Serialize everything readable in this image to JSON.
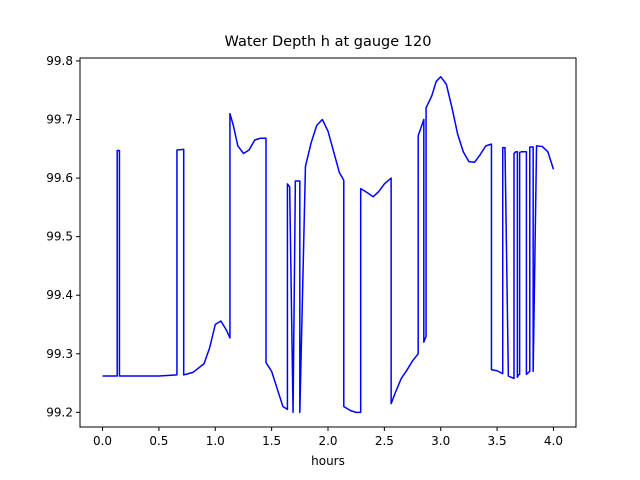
{
  "chart_data": {
    "type": "line",
    "title": "Water Depth h at gauge 120",
    "xlabel": "hours",
    "ylabel": "",
    "xlim": [
      -0.2,
      4.2
    ],
    "ylim": [
      99.175,
      99.805
    ],
    "grid": false,
    "legend": "none",
    "x_ticks": [
      0.0,
      0.5,
      1.0,
      1.5,
      2.0,
      2.5,
      3.0,
      3.5,
      4.0
    ],
    "x_tick_labels": [
      "0.0",
      "0.5",
      "1.0",
      "1.5",
      "2.0",
      "2.5",
      "3.0",
      "3.5",
      "4.0"
    ],
    "y_ticks": [
      99.2,
      99.3,
      99.4,
      99.5,
      99.6,
      99.7,
      99.8
    ],
    "y_tick_labels": [
      "99.2",
      "99.3",
      "99.4",
      "99.5",
      "99.6",
      "99.7",
      "99.8"
    ],
    "series": [
      {
        "color": "#0000ff",
        "x": [
          0.0,
          0.13,
          0.13,
          0.15,
          0.15,
          0.3,
          0.5,
          0.66,
          0.66,
          0.72,
          0.72,
          0.8,
          0.9,
          0.95,
          1.0,
          1.05,
          1.1,
          1.13,
          1.13,
          1.16,
          1.2,
          1.25,
          1.3,
          1.35,
          1.4,
          1.45,
          1.45,
          1.5,
          1.55,
          1.6,
          1.64,
          1.64,
          1.66,
          1.69,
          1.69,
          1.71,
          1.71,
          1.75,
          1.75,
          1.8,
          1.85,
          1.9,
          1.95,
          2.0,
          2.05,
          2.1,
          2.14,
          2.14,
          2.2,
          2.25,
          2.29,
          2.29,
          2.35,
          2.4,
          2.45,
          2.5,
          2.56,
          2.56,
          2.6,
          2.65,
          2.7,
          2.75,
          2.8,
          2.8,
          2.85,
          2.85,
          2.87,
          2.87,
          2.92,
          2.96,
          3.0,
          3.05,
          3.1,
          3.15,
          3.2,
          3.25,
          3.3,
          3.35,
          3.4,
          3.45,
          3.45,
          3.5,
          3.55,
          3.55,
          3.57,
          3.6,
          3.65,
          3.65,
          3.66,
          3.67,
          3.68,
          3.68,
          3.69,
          3.7,
          3.7,
          3.72,
          3.76,
          3.76,
          3.79,
          3.79,
          3.82,
          3.82,
          3.85,
          3.9,
          3.95,
          4.0
        ],
        "y": [
          99.262,
          99.262,
          99.647,
          99.647,
          99.262,
          99.262,
          99.262,
          99.264,
          99.648,
          99.649,
          99.264,
          99.268,
          99.283,
          99.31,
          99.35,
          99.356,
          99.34,
          99.327,
          99.71,
          99.69,
          99.655,
          99.642,
          99.648,
          99.665,
          99.668,
          99.668,
          99.285,
          99.27,
          99.24,
          99.21,
          99.205,
          99.59,
          99.585,
          99.2,
          99.2,
          99.585,
          99.595,
          99.595,
          99.2,
          99.62,
          99.66,
          99.69,
          99.7,
          99.68,
          99.645,
          99.61,
          99.596,
          99.21,
          99.203,
          99.2,
          99.2,
          99.582,
          99.575,
          99.568,
          99.577,
          99.59,
          99.6,
          99.215,
          99.235,
          99.258,
          99.272,
          99.288,
          99.3,
          99.672,
          99.7,
          99.32,
          99.33,
          99.72,
          99.74,
          99.765,
          99.773,
          99.76,
          99.72,
          99.675,
          99.645,
          99.628,
          99.627,
          99.64,
          99.655,
          99.658,
          99.273,
          99.271,
          99.266,
          99.652,
          99.652,
          99.262,
          99.258,
          99.642,
          99.644,
          99.645,
          99.645,
          99.26,
          99.264,
          99.265,
          99.644,
          99.645,
          99.645,
          99.265,
          99.27,
          99.653,
          99.653,
          99.27,
          99.655,
          99.654,
          99.645,
          99.615
        ]
      }
    ]
  }
}
